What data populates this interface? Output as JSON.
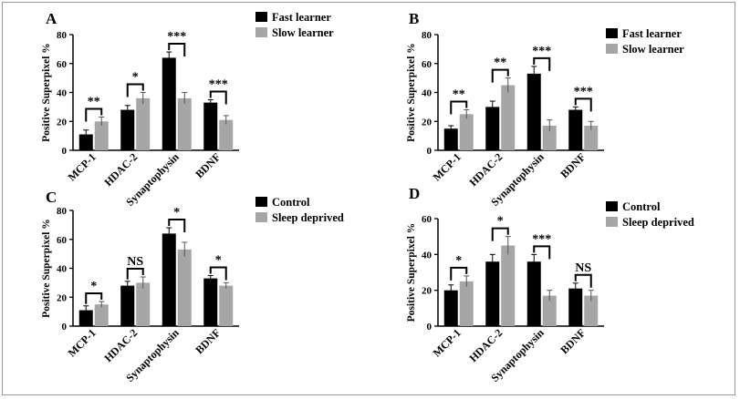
{
  "chart_data": [
    {
      "panel": "A",
      "type": "bar",
      "ylabel": "Positive Superpixel %",
      "ylim": [
        0,
        80
      ],
      "yticks": [
        0,
        20,
        40,
        60,
        80
      ],
      "categories": [
        "MCP-1",
        "HDAC-2",
        "Synaptophysin",
        "BDNF"
      ],
      "legend": "top-right",
      "series": [
        {
          "name": "Fast learner",
          "color": "#000000",
          "values": [
            11,
            28,
            64,
            33
          ],
          "errors": [
            3,
            3,
            4,
            2
          ]
        },
        {
          "name": "Slow learner",
          "color": "#a6a6a6",
          "values": [
            20,
            36,
            36,
            21
          ],
          "errors": [
            3,
            4,
            4,
            3
          ]
        }
      ],
      "significance": [
        "**",
        "*",
        "***",
        "***"
      ]
    },
    {
      "panel": "B",
      "type": "bar",
      "ylabel": "Positive Superpixel %",
      "ylim": [
        0,
        80
      ],
      "yticks": [
        0,
        20,
        40,
        60,
        80
      ],
      "categories": [
        "MCP-1",
        "HDAC-2",
        "Synaptophysin",
        "BDNF"
      ],
      "legend": "top-right",
      "series": [
        {
          "name": "Fast learner",
          "color": "#000000",
          "values": [
            15,
            30,
            53,
            28
          ],
          "errors": [
            2,
            4,
            5,
            2
          ]
        },
        {
          "name": "Slow learner",
          "color": "#a6a6a6",
          "values": [
            25,
            45,
            17,
            17
          ],
          "errors": [
            3,
            5,
            4,
            3
          ]
        }
      ],
      "significance": [
        "**",
        "**",
        "***",
        "***"
      ]
    },
    {
      "panel": "C",
      "type": "bar",
      "ylabel": "Positive Superpixel %",
      "ylim": [
        0,
        80
      ],
      "yticks": [
        0,
        20,
        40,
        60,
        80
      ],
      "categories": [
        "MCP-1",
        "HDAC-2",
        "Synaptophysin",
        "BDNF"
      ],
      "legend": "top-right",
      "series": [
        {
          "name": "Control",
          "color": "#000000",
          "values": [
            11,
            28,
            64,
            33
          ],
          "errors": [
            3,
            3,
            4,
            2
          ]
        },
        {
          "name": "Sleep deprived",
          "color": "#a6a6a6",
          "values": [
            15,
            30,
            53,
            28
          ],
          "errors": [
            2,
            4,
            5,
            2
          ]
        }
      ],
      "significance": [
        "*",
        "NS",
        "*",
        "*"
      ]
    },
    {
      "panel": "D",
      "type": "bar",
      "ylabel": "Positive Superpixel %",
      "ylim": [
        0,
        60
      ],
      "yticks": [
        0,
        20,
        40,
        60
      ],
      "categories": [
        "MCP-1",
        "HDAC-2",
        "Synaptophysin",
        "BDNF"
      ],
      "legend": "top-right",
      "series": [
        {
          "name": "Control",
          "color": "#000000",
          "values": [
            20,
            36,
            36,
            21
          ],
          "errors": [
            3,
            4,
            4,
            3
          ]
        },
        {
          "name": "Sleep deprived",
          "color": "#a6a6a6",
          "values": [
            25,
            45,
            17,
            17
          ],
          "errors": [
            3,
            5,
            3,
            3
          ]
        }
      ],
      "significance": [
        "*",
        "*",
        "***",
        "NS"
      ]
    }
  ]
}
